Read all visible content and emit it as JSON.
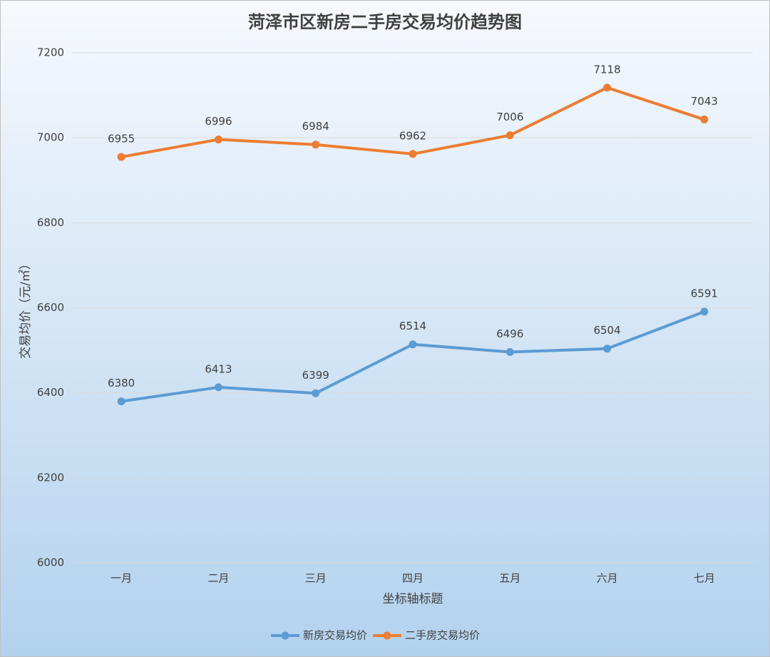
{
  "chart_data": {
    "type": "line",
    "title": "菏泽市区新房二手房交易均价趋势图",
    "y_label": "交易均价（元/㎡）",
    "x_label": "坐标轴标题",
    "categories": [
      "一月",
      "二月",
      "三月",
      "四月",
      "五月",
      "六月",
      "七月"
    ],
    "series": [
      {
        "name": "新房交易均价",
        "color": "#5b9bd5",
        "values": [
          6380,
          6413,
          6399,
          6514,
          6496,
          6504,
          6591
        ]
      },
      {
        "name": "二手房交易均价",
        "color": "#ed7d31",
        "values": [
          6955,
          6996,
          6984,
          6962,
          7006,
          7118,
          7043
        ]
      }
    ],
    "ylim": [
      6000,
      7200
    ],
    "yticks": [
      6000,
      6200,
      6400,
      6600,
      6800,
      7000,
      7200
    ],
    "grid": true,
    "legend": "bottom"
  }
}
